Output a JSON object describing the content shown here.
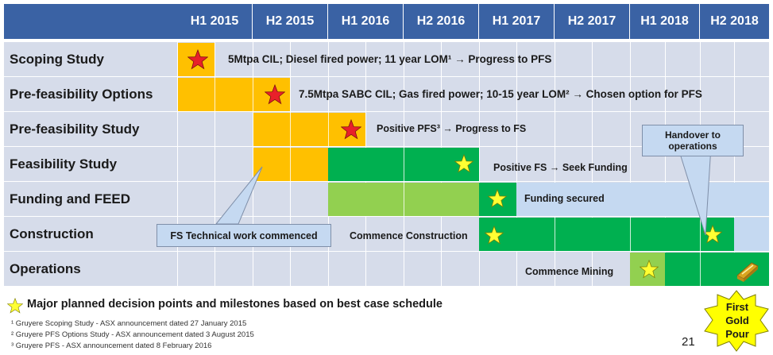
{
  "header": {
    "periods": [
      "H1 2015",
      "H2 2015",
      "H1 2016",
      "H2 2016",
      "H1 2017",
      "H2 2017",
      "H1 2018",
      "H2 2018"
    ]
  },
  "rows": [
    {
      "label": "Scoping Study",
      "milestone": "5Mtpa CIL; Diesel fired power; 11 year LOM¹ → Progress to PFS"
    },
    {
      "label": "Pre-feasibility Options",
      "milestone": "7.5Mtpa SABC CIL; Gas fired power; 10-15 year LOM² → Chosen option for PFS"
    },
    {
      "label": "Pre-feasibility Study",
      "milestone": "Positive PFS³ → Progress to FS"
    },
    {
      "label": "Feasibility Study",
      "milestone": "Positive FS → Seek Funding"
    },
    {
      "label": "Funding and FEED",
      "milestone": "Funding secured"
    },
    {
      "label": "Construction",
      "milestone": "Commence Construction"
    },
    {
      "label": "Operations",
      "milestone": "Commence Mining"
    }
  ],
  "callouts": {
    "fs_technical": "FS Technical work commenced",
    "handover": "Handover to operations"
  },
  "legend": "Major planned decision points and milestones based on best case schedule",
  "first_gold": [
    "First",
    "Gold",
    "Pour"
  ],
  "footnotes": [
    "¹ Gruyere Scoping Study - ASX announcement dated 27 January 2015",
    "² Gruyere PFS Options Study - ASX announcement dated 3 August 2015",
    "³ Gruyere PFS - ASX announcement dated 8 February 2016"
  ],
  "page_number": "21",
  "colors": {
    "header": "#3a62a4",
    "row_bg": "#d6dcea",
    "orange": "#ffc000",
    "dark_green": "#00b050",
    "light_green": "#92d050",
    "light_blue": "#c5d9f1",
    "red_star": "#e8202a",
    "yellow_star": "#ffff33"
  },
  "icons": {
    "decision_point": "red-star-icon",
    "milestone": "yellow-star-icon",
    "gold": "gold-bar-icon"
  }
}
